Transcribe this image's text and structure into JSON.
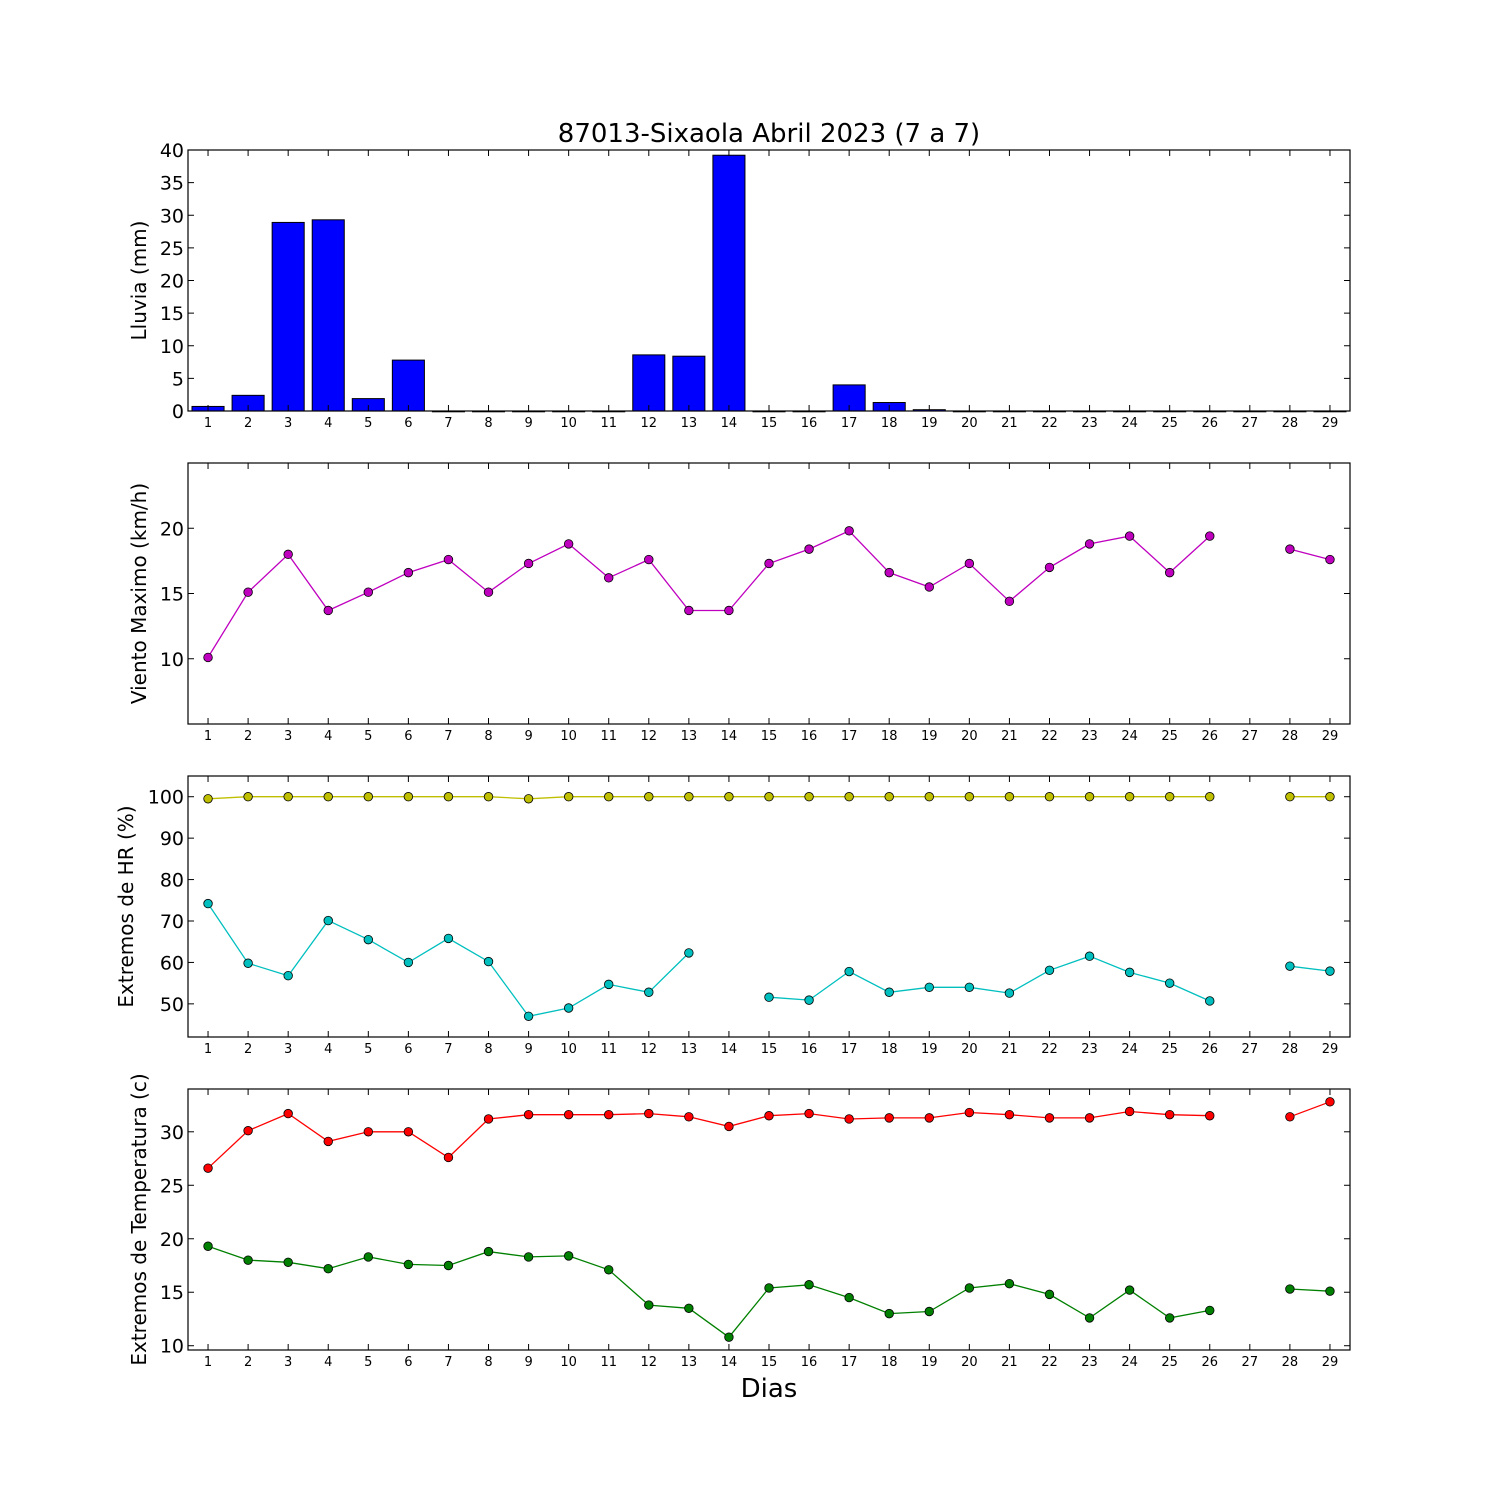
{
  "figure": {
    "title": "87013-Sixaola Abril 2023  (7 a 7)",
    "xlabel": "Dias"
  },
  "chart_data": [
    {
      "type": "bar",
      "name": "lluvia",
      "ylabel": "Lluvia (mm)",
      "x": [
        1,
        2,
        3,
        4,
        5,
        6,
        7,
        8,
        9,
        10,
        11,
        12,
        13,
        14,
        15,
        16,
        17,
        18,
        19,
        20,
        21,
        22,
        23,
        24,
        25,
        26,
        27,
        28,
        29
      ],
      "series": [
        {
          "color": "#0000ff",
          "values": [
            0.7,
            2.4,
            28.9,
            29.3,
            1.9,
            7.8,
            0,
            0,
            0,
            0,
            0,
            8.6,
            8.4,
            39.2,
            0,
            0,
            4.0,
            1.3,
            0.2,
            0,
            0,
            0,
            0,
            0,
            0,
            0,
            0,
            0,
            0
          ]
        }
      ],
      "xlim": [
        0.5,
        29.5
      ],
      "ylim": [
        0,
        40
      ],
      "yticks": [
        0,
        5,
        10,
        15,
        20,
        25,
        30,
        35,
        40
      ]
    },
    {
      "type": "line",
      "name": "viento",
      "ylabel": "Viento Maximo (km/h)",
      "x": [
        1,
        2,
        3,
        4,
        5,
        6,
        7,
        8,
        9,
        10,
        11,
        12,
        13,
        14,
        15,
        16,
        17,
        18,
        19,
        20,
        21,
        22,
        23,
        24,
        25,
        26,
        27,
        28,
        29
      ],
      "series": [
        {
          "color": "#bf00bf",
          "values": [
            10.1,
            15.1,
            18.0,
            13.7,
            15.1,
            16.6,
            17.6,
            15.1,
            17.3,
            18.8,
            16.2,
            17.6,
            13.7,
            13.7,
            17.3,
            18.4,
            19.8,
            16.6,
            15.5,
            17.3,
            14.4,
            17.0,
            18.8,
            19.4,
            16.6,
            19.4,
            null,
            18.4,
            17.6
          ]
        }
      ],
      "xlim": [
        0.5,
        29.5
      ],
      "ylim": [
        5,
        25
      ],
      "yticks": [
        10,
        15,
        20
      ]
    },
    {
      "type": "line",
      "name": "humedad",
      "ylabel": "Extremos de HR (%)",
      "x": [
        1,
        2,
        3,
        4,
        5,
        6,
        7,
        8,
        9,
        10,
        11,
        12,
        13,
        14,
        15,
        16,
        17,
        18,
        19,
        20,
        21,
        22,
        23,
        24,
        25,
        26,
        27,
        28,
        29
      ],
      "series": [
        {
          "color": "#bfbf00",
          "values": [
            99.5,
            100,
            100,
            100,
            100,
            100,
            100,
            100,
            99.5,
            100,
            100,
            100,
            100,
            100,
            100,
            100,
            100,
            100,
            100,
            100,
            100,
            100,
            100,
            100,
            100,
            100,
            null,
            100,
            100
          ]
        },
        {
          "color": "#00bfbf",
          "values": [
            74.2,
            59.8,
            56.8,
            70.1,
            65.5,
            60.0,
            65.8,
            60.2,
            47.0,
            49.0,
            54.7,
            52.8,
            62.3,
            null,
            51.6,
            50.9,
            57.8,
            52.8,
            54.0,
            54.0,
            52.6,
            58.1,
            61.5,
            57.6,
            55.0,
            50.7,
            null,
            59.1,
            57.9
          ]
        }
      ],
      "xlim": [
        0.5,
        29.5
      ],
      "ylim": [
        42,
        105
      ],
      "yticks": [
        50,
        60,
        70,
        80,
        90,
        100
      ]
    },
    {
      "type": "line",
      "name": "temperatura",
      "ylabel": "Extremos de Temperatura (c)",
      "x": [
        1,
        2,
        3,
        4,
        5,
        6,
        7,
        8,
        9,
        10,
        11,
        12,
        13,
        14,
        15,
        16,
        17,
        18,
        19,
        20,
        21,
        22,
        23,
        24,
        25,
        26,
        27,
        28,
        29
      ],
      "series": [
        {
          "color": "#ff0000",
          "values": [
            26.6,
            30.1,
            31.7,
            29.1,
            30.0,
            30.0,
            27.6,
            31.2,
            31.6,
            31.6,
            31.6,
            31.7,
            31.4,
            30.5,
            31.5,
            31.7,
            31.2,
            31.3,
            31.3,
            31.8,
            31.6,
            31.3,
            31.3,
            31.9,
            31.6,
            31.5,
            null,
            31.4,
            32.8
          ]
        },
        {
          "color": "#008000",
          "values": [
            19.3,
            18.0,
            17.8,
            17.2,
            18.3,
            17.6,
            17.5,
            18.8,
            18.3,
            18.4,
            17.1,
            13.8,
            13.5,
            10.8,
            15.4,
            15.7,
            14.5,
            13.0,
            13.2,
            15.4,
            15.8,
            14.8,
            12.6,
            15.2,
            12.6,
            13.3,
            null,
            15.3,
            15.1
          ]
        }
      ],
      "xlim": [
        0.5,
        29.5
      ],
      "ylim": [
        9.6,
        34
      ],
      "yticks": [
        10,
        15,
        20,
        25,
        30
      ]
    }
  ]
}
